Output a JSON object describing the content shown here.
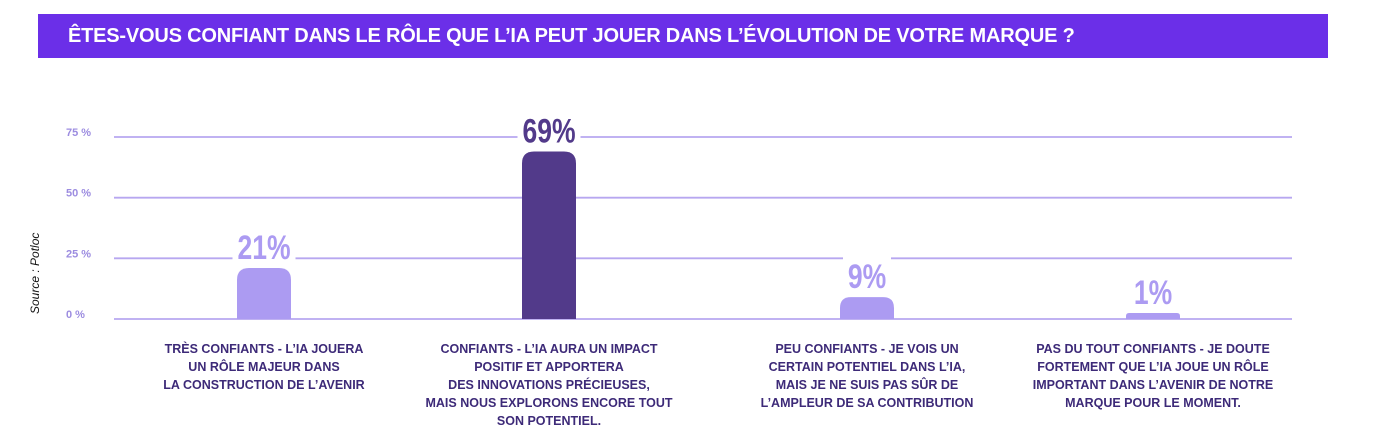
{
  "title": "ÊTES-VOUS CONFIANT DANS LE RÔLE QUE L’IA PEUT JOUER DANS L’ÉVOLUTION DE VOTRE MARQUE ?",
  "source": "Source : Potloc",
  "colors": {
    "title_bg": "#6b2fe8",
    "grid": "#b7a7f0",
    "bar_light": "#ac9bf2",
    "bar_dark": "#523a8a",
    "label_dark": "#3d2a78",
    "tick": "#9c8ce0"
  },
  "chart_data": {
    "type": "bar",
    "title": "ÊTES-VOUS CONFIANT DANS LE RÔLE QUE L’IA PEUT JOUER DANS L’ÉVOLUTION DE VOTRE MARQUE ?",
    "categories": [
      "TRÈS CONFIANTS - L’IA JOUERA\nUN RÔLE MAJEUR DANS\nLA CONSTRUCTION DE L’AVENIR",
      "CONFIANTS - L’IA AURA UN IMPACT\nPOSITIF ET APPORTERA\nDES INNOVATIONS PRÉCIEUSES,\nMAIS NOUS EXPLORONS ENCORE TOUT\nSON POTENTIEL.",
      "PEU CONFIANTS - JE VOIS UN\nCERTAIN POTENTIEL DANS L’IA,\nMAIS JE NE SUIS PAS SÛR DE\nL’AMPLEUR DE SA CONTRIBUTION",
      "PAS DU TOUT CONFIANTS - JE DOUTE\nFORTEMENT QUE L’IA JOUE UN RÔLE\nIMPORTANT DANS L’AVENIR DE NOTRE\nMARQUE POUR LE MOMENT."
    ],
    "values": [
      21,
      69,
      9,
      1
    ],
    "value_labels": [
      "21%",
      "69%",
      "9%",
      "1%"
    ],
    "highlight_index": 1,
    "yticks": [
      0,
      25,
      50,
      75
    ],
    "ytick_labels": [
      "0 %",
      "25 %",
      "50 %",
      "75 %"
    ],
    "ylim": [
      0,
      75
    ],
    "grid": true,
    "xlabel": "",
    "ylabel": ""
  }
}
